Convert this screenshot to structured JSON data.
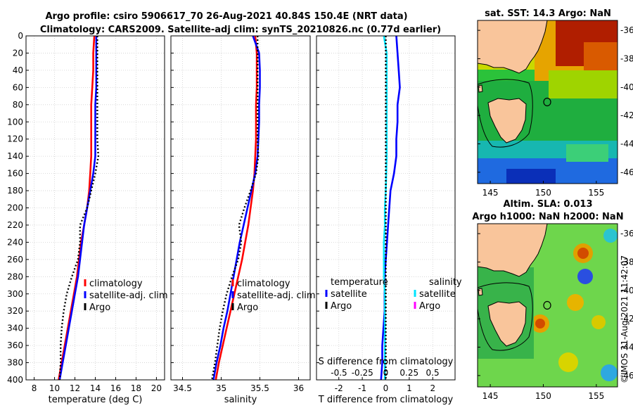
{
  "figure": {
    "title_line1": "Argo profile: csiro 5906617_70 26-Aug-2021 40.84S 150.4E (NRT data)",
    "title_line2": "Climatology: CARS2009. Satellite-adj clim: synTS_20210826.nc (0.77d earlier)",
    "watermark": "©IMOS 31-Aug-2021 11:42:07",
    "colors": {
      "climatology": "#ff0000",
      "satellite": "#0000ff",
      "argo": "#000000",
      "satellite_salt": "#00e5ff",
      "argo_salt": "#ff00ff"
    }
  },
  "chart_data": [
    {
      "type": "line",
      "name": "temperature-profile",
      "xlabel": "temperature (deg C)",
      "ylabel": "",
      "xlim": [
        7.2,
        20.8
      ],
      "ylim": [
        400,
        0
      ],
      "xticks": [
        "8",
        "10",
        "12",
        "14",
        "16",
        "18",
        "20"
      ],
      "xtick_values": [
        8,
        10,
        12,
        14,
        16,
        18,
        20
      ],
      "yticks": [
        "0",
        "20",
        "40",
        "60",
        "80",
        "100",
        "120",
        "140",
        "160",
        "180",
        "200",
        "220",
        "240",
        "260",
        "280",
        "300",
        "320",
        "340",
        "360",
        "380",
        "400"
      ],
      "ytick_values": [
        0,
        20,
        40,
        60,
        80,
        100,
        120,
        140,
        160,
        180,
        200,
        220,
        240,
        260,
        280,
        300,
        320,
        340,
        360,
        380,
        400
      ],
      "grid": true,
      "legend": {
        "position": "bottom-right",
        "entries": [
          "climatology",
          "satellite-adj. clim",
          "Argo"
        ]
      },
      "series": [
        {
          "name": "climatology",
          "color": "#ff0000",
          "style": "solid",
          "x": [
            13.9,
            13.8,
            13.8,
            13.7,
            13.6,
            13.6,
            13.6,
            13.6,
            13.5,
            13.4,
            13.2,
            12.9,
            12.6,
            12.4,
            12.2,
            11.9,
            11.6,
            11.3,
            11.0,
            10.7,
            10.4
          ],
          "y": [
            0,
            20,
            40,
            60,
            80,
            100,
            120,
            140,
            160,
            180,
            200,
            220,
            240,
            260,
            280,
            300,
            320,
            340,
            360,
            380,
            400
          ]
        },
        {
          "name": "satellite-adj. clim",
          "color": "#0000ff",
          "style": "solid",
          "x": [
            14.1,
            14.1,
            14.1,
            14.1,
            14.0,
            14.0,
            14.0,
            14.0,
            13.8,
            13.5,
            13.2,
            12.9,
            12.7,
            12.5,
            12.3,
            12.0,
            11.7,
            11.4,
            11.1,
            10.8,
            10.5
          ],
          "y": [
            0,
            20,
            40,
            60,
            80,
            100,
            120,
            140,
            160,
            180,
            200,
            220,
            240,
            260,
            280,
            300,
            320,
            340,
            360,
            380,
            400
          ]
        },
        {
          "name": "Argo",
          "color": "#000000",
          "style": "dotted",
          "x": [
            14.2,
            14.2,
            14.2,
            14.2,
            14.2,
            14.2,
            14.2,
            14.3,
            14.0,
            13.6,
            13.2,
            12.5,
            12.5,
            12.3,
            11.7,
            11.2,
            10.9,
            10.7,
            10.6,
            10.6,
            10.5
          ],
          "y": [
            0,
            20,
            40,
            60,
            80,
            100,
            120,
            140,
            160,
            180,
            200,
            220,
            240,
            260,
            280,
            300,
            320,
            340,
            360,
            380,
            400
          ]
        }
      ]
    },
    {
      "type": "line",
      "name": "salinity-profile",
      "xlabel": "salinity",
      "ylabel": "",
      "xlim": [
        34.35,
        36.15
      ],
      "ylim": [
        400,
        0
      ],
      "xticks": [
        "34.5",
        "35",
        "35.5",
        "36"
      ],
      "xtick_values": [
        34.5,
        35,
        35.5,
        36
      ],
      "grid": true,
      "legend": {
        "position": "bottom-right",
        "entries": [
          "climatology",
          "satellite-adj. clim",
          "Argo"
        ]
      },
      "series": [
        {
          "name": "climatology",
          "color": "#ff0000",
          "style": "solid",
          "x": [
            35.44,
            35.46,
            35.46,
            35.46,
            35.45,
            35.45,
            35.45,
            35.44,
            35.43,
            35.41,
            35.38,
            35.35,
            35.31,
            35.27,
            35.22,
            35.17,
            35.12,
            35.07,
            35.02,
            34.97,
            34.93
          ],
          "y": [
            0,
            20,
            40,
            60,
            80,
            100,
            120,
            140,
            160,
            180,
            200,
            220,
            240,
            260,
            280,
            300,
            320,
            340,
            360,
            380,
            400
          ]
        },
        {
          "name": "satellite-adj. clim",
          "color": "#0000ff",
          "style": "solid",
          "x": [
            35.41,
            35.49,
            35.5,
            35.5,
            35.49,
            35.49,
            35.48,
            35.47,
            35.44,
            35.39,
            35.34,
            35.29,
            35.24,
            35.2,
            35.16,
            35.12,
            35.08,
            35.03,
            34.99,
            34.94,
            34.9
          ],
          "y": [
            0,
            20,
            40,
            60,
            80,
            100,
            120,
            140,
            160,
            180,
            200,
            220,
            240,
            260,
            280,
            300,
            320,
            340,
            360,
            380,
            400
          ]
        },
        {
          "name": "Argo",
          "color": "#000000",
          "style": "dotted",
          "x": [
            35.47,
            35.47,
            35.47,
            35.47,
            35.47,
            35.47,
            35.47,
            35.48,
            35.45,
            35.38,
            35.3,
            35.23,
            35.26,
            35.22,
            35.14,
            35.07,
            35.02,
            34.98,
            34.95,
            34.92,
            34.88
          ],
          "y": [
            0,
            20,
            40,
            60,
            80,
            100,
            120,
            140,
            160,
            180,
            200,
            220,
            240,
            260,
            280,
            300,
            320,
            340,
            360,
            380,
            400
          ]
        }
      ]
    },
    {
      "type": "line",
      "name": "difference-profile",
      "xlabel": "T difference from climatology",
      "ylabel": "",
      "title_top": "S difference from climatology",
      "xlim": [
        -2.95,
        2.95
      ],
      "ylim": [
        400,
        0
      ],
      "xticks": [
        "-2",
        "-1",
        "0",
        "1",
        "2"
      ],
      "xtick_values": [
        -2,
        -1,
        0,
        1,
        2
      ],
      "top_xticks": [
        "-0.5",
        "-0.25",
        "0",
        "0.25",
        "0.5"
      ],
      "top_xtick_values": [
        -0.5,
        -0.25,
        0,
        0.25,
        0.5
      ],
      "top_xlim": [
        -0.74,
        0.74
      ],
      "grid": true,
      "legend": {
        "position": "bottom",
        "left_header": "temperature",
        "right_header": "salinity",
        "left_entries": [
          "satellite",
          "Argo"
        ],
        "right_entries": [
          "satellite",
          "Argo"
        ]
      },
      "series": [
        {
          "name": "T satellite",
          "color": "#0000ff",
          "style": "solid",
          "axis": "T",
          "x": [
            0.45,
            0.5,
            0.55,
            0.6,
            0.5,
            0.5,
            0.45,
            0.45,
            0.35,
            0.2,
            0.15,
            0.1,
            0.05,
            0.0,
            -0.05,
            -0.05,
            -0.05,
            -0.1,
            -0.15,
            -0.15,
            -0.2
          ],
          "y": [
            0,
            20,
            40,
            60,
            80,
            100,
            120,
            140,
            160,
            180,
            200,
            220,
            240,
            260,
            280,
            300,
            320,
            340,
            360,
            380,
            400
          ]
        },
        {
          "name": "S satellite",
          "color": "#00e5ff",
          "style": "solid",
          "axis": "S",
          "x": [
            -0.02,
            0.01,
            0.01,
            0.01,
            0.01,
            0.01,
            0.01,
            0.01,
            0.005,
            0.0,
            -0.01,
            -0.01,
            -0.02,
            -0.02,
            -0.02,
            -0.01,
            -0.01,
            -0.01,
            -0.01,
            -0.01,
            -0.01
          ],
          "y": [
            0,
            20,
            40,
            60,
            80,
            100,
            120,
            140,
            160,
            180,
            200,
            220,
            240,
            260,
            280,
            300,
            320,
            340,
            360,
            380,
            400
          ]
        },
        {
          "name": "T Argo",
          "color": "#000000",
          "style": "dotted",
          "axis": "T",
          "x": [
            0.0,
            0.0,
            0.0,
            0.0,
            0.0,
            0.0,
            0.0,
            0.0,
            0.0,
            0.0,
            0.0,
            0.0,
            0.0,
            0.0,
            0.0,
            0.0,
            0.0,
            0.0,
            0.0,
            0.0,
            0.0
          ],
          "y": [
            0,
            20,
            40,
            60,
            80,
            100,
            120,
            140,
            160,
            180,
            200,
            220,
            240,
            260,
            280,
            300,
            320,
            340,
            360,
            380,
            400
          ]
        }
      ]
    },
    {
      "type": "heatmap",
      "name": "sst-map",
      "title": "sat. SST: 14.3 Argo: NaN",
      "xticks": [
        "145",
        "150",
        "155"
      ],
      "xtick_values": [
        145,
        150,
        155
      ],
      "yticks": [
        "-36",
        "-38",
        "-40",
        "-42",
        "-44",
        "-46"
      ],
      "ytick_values": [
        -36,
        -38,
        -40,
        -42,
        -44,
        -46
      ],
      "xlim": [
        143.8,
        157.0
      ],
      "ylim": [
        -35.3,
        -46.8
      ],
      "marker": {
        "lon": 150.4,
        "lat": -40.84
      }
    },
    {
      "type": "heatmap",
      "name": "sla-map",
      "title_line1": "Altim. SLA: 0.013",
      "title_line2": "Argo h1000: NaN h2000: NaN",
      "xticks": [
        "145",
        "150",
        "155"
      ],
      "xtick_values": [
        145,
        150,
        155
      ],
      "yticks": [
        "-36",
        "-38",
        "-40",
        "-42",
        "-44",
        "-46"
      ],
      "ytick_values": [
        -36,
        -38,
        -40,
        -42,
        -44,
        -46
      ],
      "xlim": [
        143.8,
        157.0
      ],
      "ylim": [
        -35.3,
        -46.8
      ],
      "marker": {
        "lon": 150.4,
        "lat": -40.84
      }
    }
  ]
}
